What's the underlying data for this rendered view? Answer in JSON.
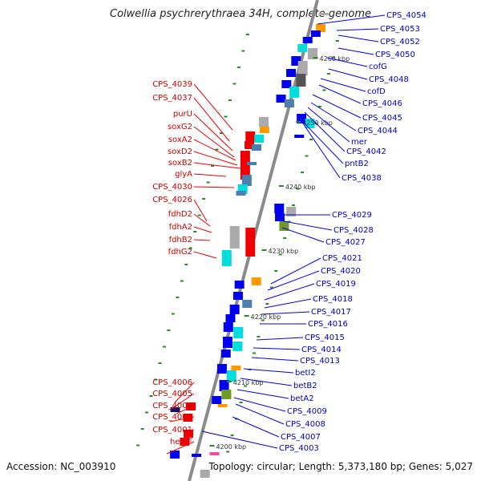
{
  "title": "Colwellia psychrerythraea 34H, complete genome",
  "footer": {
    "accession": "Accession: NC_003910",
    "summary": "Topology: circular; Length: 5,373,180 bp; Genes: 5,027"
  },
  "colors": {
    "left_labels": "#cc0000",
    "right_labels": "#0000cc",
    "backbone": "#888888"
  },
  "ruler": [
    "4260 kbp",
    "4250 kbp",
    "4240 kbp",
    "4230 kbp",
    "4220 kbp",
    "4210 kbp",
    "4200 kbp"
  ],
  "left_labels": [
    "CPS_4039",
    "CPS_4037",
    "purU",
    "soxG2",
    "soxA2",
    "soxD2",
    "soxB2",
    "glyA",
    "CPS_4030",
    "CPS_4026",
    "fdhD2",
    "fdhA2",
    "fdhB2",
    "fdhG2",
    "CPS_4006",
    "CPS_4005",
    "CPS_4004",
    "CPS_4002",
    "CPS_4001",
    "hemF"
  ],
  "right_labels": [
    "CPS_4054",
    "CPS_4053",
    "CPS_4052",
    "CPS_4050",
    "cofG",
    "CPS_4048",
    "cofD",
    "CPS_4046",
    "CPS_4045",
    "CPS_4044",
    "mer",
    "CPS_4042",
    "pntB2",
    "CPS_4038",
    "CPS_4029",
    "CPS_4028",
    "CPS_4027",
    "CPS_4021",
    "CPS_4020",
    "CPS_4019",
    "CPS_4018",
    "CPS_4017",
    "CPS_4016",
    "CPS_4015",
    "CPS_4014",
    "CPS_4013",
    "betI2",
    "betB2",
    "betA2",
    "CPS_4009",
    "CPS_4008",
    "CPS_4007",
    "CPS_4003"
  ]
}
